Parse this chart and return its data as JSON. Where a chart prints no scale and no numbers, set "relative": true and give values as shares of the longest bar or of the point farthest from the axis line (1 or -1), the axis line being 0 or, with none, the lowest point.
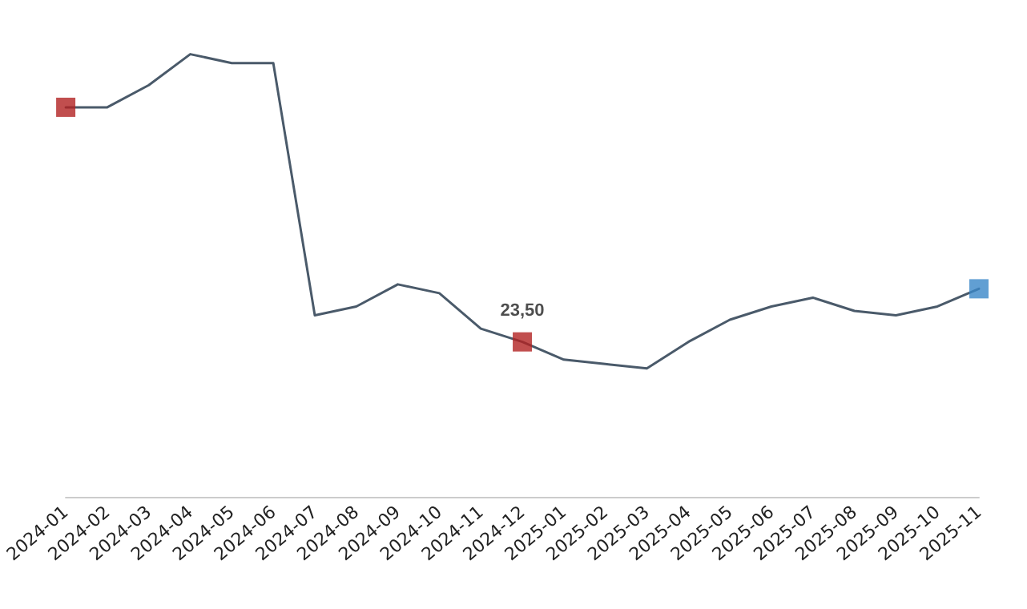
{
  "chart_data": {
    "type": "line",
    "relative": true,
    "categories": [
      "2024-01",
      "2024-02",
      "2024-03",
      "2024-04",
      "2024-05",
      "2024-06",
      "2024-07",
      "2024-08",
      "2024-09",
      "2024-10",
      "2024-11",
      "2024-12",
      "2025-01",
      "2025-02",
      "2025-03",
      "2025-04",
      "2025-05",
      "2025-06",
      "2025-07",
      "2025-08",
      "2025-09",
      "2025-10",
      "2025-11"
    ],
    "series": [
      {
        "color": "#4a5a6a",
        "marker": "none",
        "values": [
          0.88,
          0.88,
          0.93,
          1,
          0.98,
          0.98,
          0.41,
          0.43,
          0.48,
          0.46,
          0.38,
          0.35,
          0.31,
          0.3,
          0.29,
          0.35,
          0.4,
          0.43,
          0.45,
          0.42,
          0.41,
          0.43,
          0.47
        ]
      },
      {
        "type": "scatter",
        "marker": "square",
        "colors": [
          "#b22222",
          null,
          null,
          null,
          null,
          null,
          null,
          null,
          null,
          null,
          null,
          "#b22222",
          null,
          null,
          null,
          null,
          null,
          null,
          null,
          null,
          null,
          null,
          "#3a87c8"
        ],
        "values": [
          0.88,
          null,
          null,
          null,
          null,
          null,
          null,
          null,
          null,
          null,
          null,
          0.35,
          null,
          null,
          null,
          null,
          null,
          null,
          null,
          null,
          null,
          null,
          0.47
        ]
      }
    ],
    "annotations": [
      "23,50"
    ],
    "tick_labels": "x"
  }
}
